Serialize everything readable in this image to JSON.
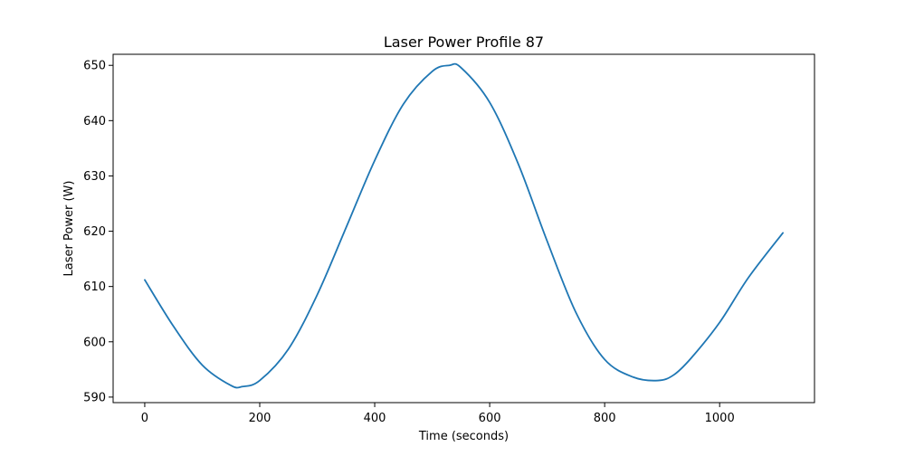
{
  "chart_data": {
    "type": "line",
    "title": "Laser Power Profile 87",
    "xlabel": "Time (seconds)",
    "ylabel": "Laser Power (W)",
    "xlim": [
      -55,
      1165
    ],
    "ylim": [
      589,
      652
    ],
    "xticks": [
      0,
      200,
      400,
      600,
      800,
      1000
    ],
    "yticks": [
      590,
      600,
      610,
      620,
      630,
      640,
      650
    ],
    "grid": false,
    "line_color": "#1f77b4",
    "series": [
      {
        "x": [
          0,
          50,
          100,
          150,
          170,
          200,
          250,
          300,
          350,
          400,
          450,
          500,
          530,
          550,
          600,
          650,
          700,
          750,
          800,
          850,
          893,
          920,
          950,
          1000,
          1050,
          1110
        ],
        "values": [
          611.2,
          602.8,
          595.8,
          592.1,
          591.9,
          593.0,
          598.7,
          608.5,
          620.6,
          632.8,
          643.0,
          648.9,
          650.0,
          649.6,
          643.3,
          632.1,
          618.2,
          605.3,
          596.8,
          593.6,
          593.0,
          594.0,
          597.0,
          603.5,
          611.6,
          619.7
        ]
      }
    ]
  }
}
